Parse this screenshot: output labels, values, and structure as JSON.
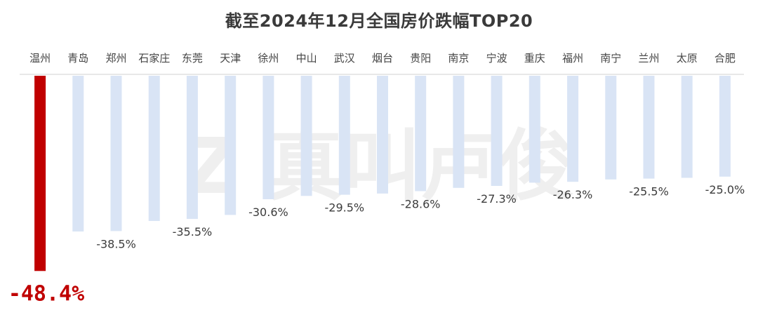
{
  "title": "截至2024年12月全国房价跌幅TOP20",
  "watermark_text": "Z 真叫卢俊",
  "colors": {
    "highlight": "#c00000",
    "bar": "#d9e4f5",
    "text": "#444444"
  },
  "chart_data": {
    "type": "bar",
    "title": "截至2024年12月全国房价跌幅TOP20",
    "xlabel": "",
    "ylabel": "",
    "categories": [
      "温州",
      "青岛",
      "郑州",
      "石家庄",
      "东莞",
      "天津",
      "徐州",
      "中山",
      "武汉",
      "烟台",
      "贵阳",
      "南京",
      "宁波",
      "重庆",
      "福州",
      "南宁",
      "兰州",
      "太原",
      "合肥"
    ],
    "values": [
      -48.4,
      -38.6,
      -38.5,
      -36.0,
      -35.5,
      -34.5,
      -30.6,
      -29.8,
      -29.5,
      -29.2,
      -28.6,
      -27.8,
      -27.3,
      -26.5,
      -26.3,
      -25.7,
      -25.5,
      -25.3,
      -25.0
    ],
    "value_labels": [
      "-48.4%",
      "",
      "-38.5%",
      "",
      "-35.5%",
      "",
      "-30.6%",
      "",
      "-29.5%",
      "",
      "-28.6%",
      "",
      "-27.3%",
      "",
      "-26.3%",
      "",
      "-25.5%",
      "",
      "-25.0%"
    ],
    "highlight_index": 0,
    "ylim": [
      -50,
      0
    ],
    "grid": false,
    "legend": "none",
    "category_axis_position": "top"
  }
}
